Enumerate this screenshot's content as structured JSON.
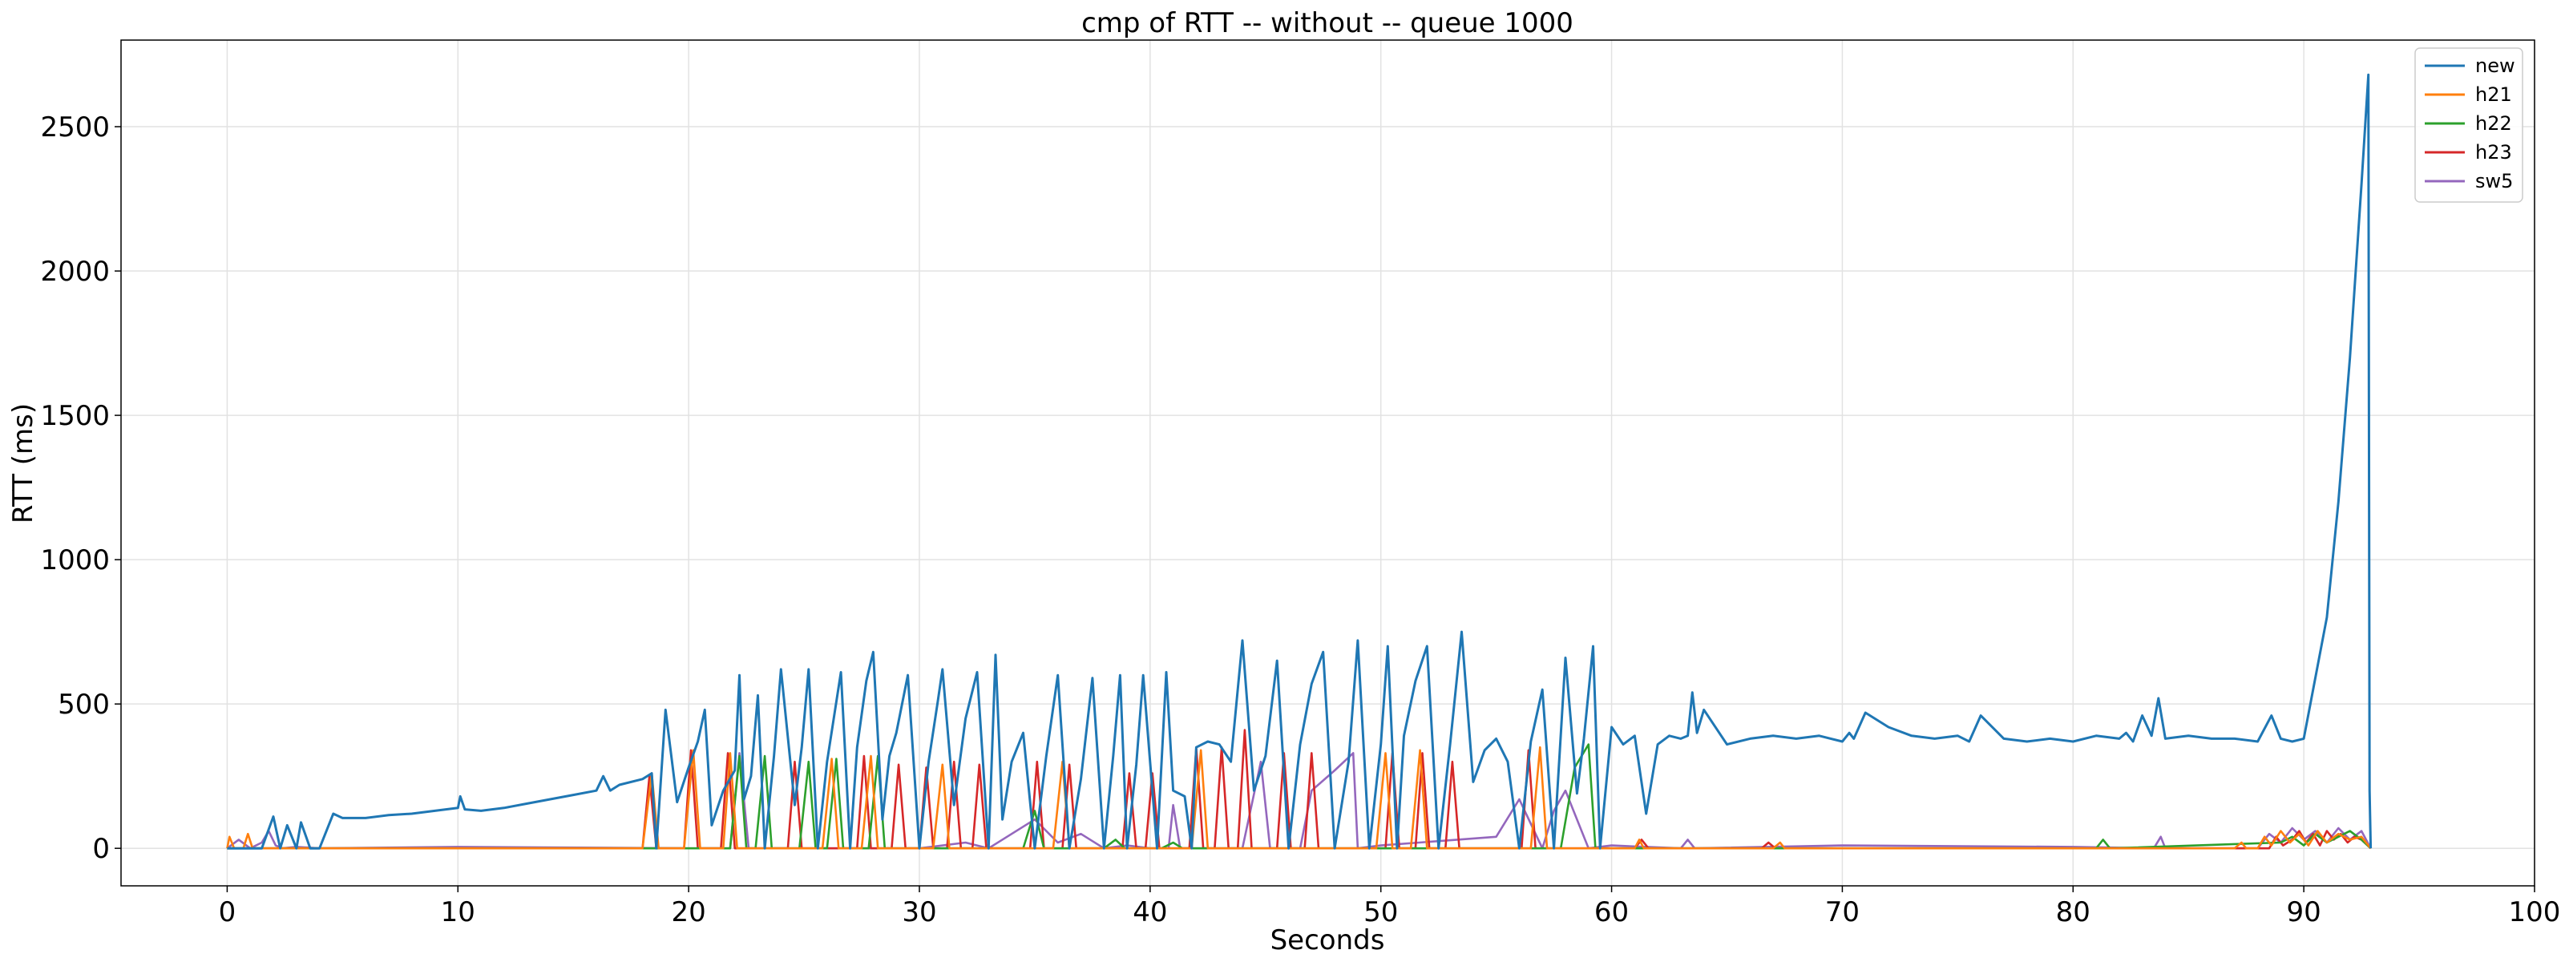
{
  "chart_data": {
    "type": "line",
    "title": "cmp of RTT -- without -- queue 1000",
    "xlabel": "Seconds",
    "ylabel": "RTT (ms)",
    "xlim": [
      -4.6,
      100
    ],
    "ylim": [
      -130,
      2800
    ],
    "xticks": [
      0,
      10,
      20,
      30,
      40,
      50,
      60,
      70,
      80,
      90,
      100
    ],
    "yticks": [
      0,
      500,
      1000,
      1500,
      2000,
      2500
    ],
    "grid": true,
    "legend_position": "top-right",
    "series": [
      {
        "name": "new",
        "color": "#1f77b4",
        "x": [
          0,
          1.5,
          2.0,
          2.3,
          2.6,
          3.0,
          3.2,
          3.6,
          4.0,
          4.6,
          5.0,
          6.0,
          7.0,
          8.0,
          9.0,
          10.0,
          10.1,
          10.3,
          11.0,
          12.0,
          13.0,
          14.0,
          15.0,
          16.0,
          16.3,
          16.6,
          17.0,
          18.0,
          18.4,
          18.6,
          19.0,
          19.5,
          20.0,
          20.4,
          20.7,
          21.0,
          21.5,
          22.0,
          22.2,
          22.4,
          22.7,
          23.0,
          23.3,
          23.7,
          24.0,
          24.6,
          24.9,
          25.2,
          25.6,
          26.0,
          26.6,
          27.0,
          27.3,
          27.7,
          28.0,
          28.4,
          28.7,
          29.0,
          29.5,
          30.0,
          30.4,
          30.8,
          31.0,
          31.5,
          32.0,
          32.5,
          33.0,
          33.3,
          33.6,
          34.0,
          34.5,
          35.0,
          35.5,
          36.0,
          36.5,
          37.0,
          37.5,
          38.0,
          38.4,
          38.7,
          39.0,
          39.4,
          39.7,
          40.0,
          40.3,
          40.7,
          41.0,
          41.5,
          41.8,
          42.0,
          42.5,
          43.0,
          43.5,
          44.0,
          44.5,
          45.0,
          45.5,
          46.0,
          46.5,
          47.0,
          47.5,
          48.0,
          48.6,
          49.0,
          49.5,
          50.0,
          50.3,
          50.7,
          51.0,
          51.5,
          52.0,
          52.5,
          53.0,
          53.5,
          54.0,
          54.5,
          55.0,
          55.5,
          56.0,
          56.5,
          57.0,
          57.5,
          58.0,
          58.5,
          58.8,
          59.2,
          59.5,
          60.0,
          60.5,
          61.0,
          61.5,
          62.0,
          62.5,
          63.0,
          63.3,
          63.5,
          63.7,
          64.0,
          65.0,
          66.0,
          67.0,
          68.0,
          69.0,
          70.0,
          70.3,
          70.5,
          71.0,
          72.0,
          73.0,
          74.0,
          75.0,
          75.5,
          76.0,
          77.0,
          78.0,
          79.0,
          80.0,
          81.0,
          82.0,
          82.3,
          82.6,
          83.0,
          83.4,
          83.7,
          84.0,
          85.0,
          86.0,
          87.0,
          88.0,
          88.6,
          89.0,
          89.5,
          90.0,
          91.0,
          91.5,
          92.0,
          92.5,
          92.8,
          92.85,
          92.9
        ],
        "y": [
          0,
          0,
          110,
          0,
          80,
          0,
          90,
          0,
          0,
          120,
          105,
          105,
          115,
          120,
          130,
          140,
          180,
          135,
          130,
          140,
          155,
          170,
          185,
          200,
          250,
          200,
          220,
          240,
          260,
          0,
          480,
          160,
          280,
          370,
          480,
          80,
          200,
          270,
          600,
          170,
          250,
          530,
          0,
          320,
          620,
          150,
          350,
          620,
          0,
          300,
          610,
          0,
          350,
          580,
          680,
          100,
          320,
          400,
          600,
          0,
          300,
          510,
          620,
          150,
          450,
          610,
          0,
          670,
          100,
          300,
          400,
          0,
          320,
          600,
          0,
          240,
          590,
          0,
          320,
          600,
          0,
          290,
          600,
          300,
          0,
          610,
          200,
          180,
          0,
          350,
          370,
          360,
          300,
          720,
          200,
          320,
          650,
          0,
          360,
          570,
          680,
          0,
          300,
          720,
          0,
          360,
          700,
          0,
          390,
          580,
          700,
          0,
          360,
          750,
          230,
          340,
          380,
          300,
          0,
          370,
          550,
          0,
          660,
          190,
          380,
          700,
          0,
          420,
          360,
          390,
          120,
          360,
          390,
          380,
          390,
          540,
          400,
          480,
          360,
          380,
          390,
          380,
          390,
          370,
          400,
          380,
          470,
          420,
          390,
          380,
          390,
          370,
          460,
          380,
          370,
          380,
          370,
          390,
          380,
          400,
          370,
          460,
          390,
          520,
          380,
          390,
          380,
          380,
          370,
          460,
          380,
          370,
          380,
          800,
          1200,
          1700,
          2300,
          2680,
          200,
          0
        ]
      },
      {
        "name": "h21",
        "color": "#ff7f0e",
        "x": [
          0,
          0.1,
          0.3,
          0.7,
          0.9,
          1.1,
          1.3,
          18.0,
          18.4,
          18.7,
          19.8,
          20.2,
          20.5,
          21.5,
          21.8,
          22.1,
          25.8,
          26.2,
          26.5,
          27.5,
          27.9,
          28.2,
          30.6,
          31.0,
          31.3,
          35.8,
          36.2,
          36.5,
          41.8,
          42.2,
          42.5,
          49.8,
          50.2,
          50.5,
          51.3,
          51.7,
          52.0,
          56.5,
          56.9,
          57.2,
          61.0,
          61.2,
          61.4,
          67.0,
          67.3,
          67.5,
          87.0,
          87.3,
          87.5,
          88.0,
          88.3,
          88.6,
          89.0,
          89.4,
          89.8,
          90.2,
          90.6,
          91.0,
          91.5,
          92.0,
          92.5,
          92.9
        ],
        "y": [
          0,
          40,
          0,
          0,
          50,
          0,
          0,
          0,
          260,
          0,
          0,
          340,
          0,
          0,
          330,
          0,
          0,
          310,
          0,
          0,
          320,
          0,
          0,
          290,
          0,
          0,
          300,
          0,
          0,
          340,
          0,
          0,
          330,
          0,
          0,
          340,
          0,
          0,
          350,
          0,
          0,
          30,
          0,
          0,
          20,
          0,
          0,
          20,
          0,
          0,
          40,
          10,
          60,
          20,
          50,
          10,
          60,
          20,
          50,
          30,
          40,
          0
        ]
      },
      {
        "name": "h22",
        "color": "#2ca02c",
        "x": [
          0,
          21.8,
          22.2,
          22.5,
          22.9,
          23.3,
          23.6,
          24.8,
          25.2,
          25.5,
          26.0,
          26.4,
          26.7,
          27.8,
          28.2,
          28.5,
          34.5,
          35.0,
          35.4,
          38.0,
          38.5,
          38.9,
          40.5,
          41.0,
          41.4,
          57.8,
          58.4,
          59.0,
          59.3,
          81.0,
          81.3,
          81.6,
          89.0,
          89.5,
          90.0,
          90.5,
          91.0,
          91.5,
          92.0,
          92.5,
          92.9
        ],
        "y": [
          0,
          0,
          320,
          0,
          0,
          320,
          0,
          0,
          300,
          0,
          0,
          310,
          0,
          0,
          320,
          0,
          0,
          130,
          0,
          0,
          30,
          0,
          0,
          20,
          0,
          0,
          280,
          360,
          0,
          0,
          30,
          0,
          20,
          40,
          10,
          50,
          20,
          40,
          60,
          30,
          0
        ]
      },
      {
        "name": "h23",
        "color": "#d62728",
        "x": [
          0,
          18.0,
          18.3,
          18.6,
          19.8,
          20.1,
          20.4,
          21.4,
          21.7,
          22.0,
          24.3,
          24.6,
          24.9,
          27.3,
          27.6,
          27.9,
          28.8,
          29.1,
          29.4,
          30.0,
          30.3,
          30.6,
          31.2,
          31.5,
          31.8,
          32.3,
          32.6,
          32.9,
          34.8,
          35.1,
          35.4,
          36.2,
          36.5,
          36.8,
          38.8,
          39.1,
          39.4,
          39.8,
          40.1,
          40.4,
          41.7,
          42.0,
          42.3,
          42.8,
          43.1,
          43.4,
          43.8,
          44.1,
          44.4,
          45.5,
          45.8,
          46.1,
          46.7,
          47.0,
          47.3,
          50.2,
          50.5,
          50.8,
          51.5,
          51.8,
          52.1,
          52.8,
          53.1,
          53.4,
          56.1,
          56.4,
          56.7,
          61.0,
          61.3,
          61.6,
          66.5,
          66.8,
          67.1,
          88.5,
          88.8,
          89.1,
          89.5,
          89.8,
          90.1,
          90.4,
          90.7,
          91.0,
          91.3,
          91.6,
          91.9,
          92.2,
          92.5,
          92.9
        ],
        "y": [
          0,
          0,
          250,
          0,
          0,
          340,
          0,
          0,
          330,
          0,
          0,
          300,
          0,
          0,
          320,
          0,
          0,
          290,
          0,
          0,
          280,
          0,
          0,
          300,
          0,
          0,
          290,
          0,
          0,
          300,
          0,
          0,
          290,
          0,
          0,
          260,
          0,
          0,
          260,
          0,
          0,
          350,
          0,
          0,
          350,
          0,
          0,
          410,
          0,
          0,
          330,
          0,
          0,
          330,
          0,
          0,
          330,
          0,
          0,
          330,
          0,
          0,
          300,
          0,
          0,
          340,
          0,
          0,
          30,
          0,
          0,
          20,
          0,
          0,
          40,
          10,
          30,
          60,
          20,
          50,
          10,
          60,
          30,
          50,
          20,
          40,
          30,
          0
        ]
      },
      {
        "name": "sw5",
        "color": "#9467bd",
        "x": [
          0,
          0.5,
          1.0,
          1.5,
          1.8,
          2.1,
          2.4,
          3.0,
          4.0,
          10.0,
          20.0,
          21.8,
          22.2,
          22.6,
          30.0,
          32.0,
          33.0,
          35.0,
          36.0,
          37.0,
          38.0,
          39.0,
          40.0,
          40.8,
          41.0,
          41.3,
          44.0,
          44.8,
          45.2,
          46.5,
          47.0,
          48.0,
          48.8,
          49.0,
          50.0,
          55.0,
          56.0,
          57.0,
          57.5,
          58.0,
          59.0,
          60.0,
          63.0,
          63.3,
          63.6,
          70.0,
          80.0,
          83.5,
          83.8,
          84.0,
          88.0,
          88.5,
          89.0,
          89.5,
          90.0,
          90.5,
          91.0,
          91.5,
          92.0,
          92.5,
          92.9
        ],
        "y": [
          0,
          30,
          0,
          20,
          60,
          10,
          0,
          5,
          0,
          5,
          0,
          0,
          330,
          0,
          0,
          20,
          0,
          100,
          20,
          50,
          0,
          10,
          0,
          0,
          150,
          0,
          0,
          300,
          0,
          0,
          200,
          270,
          330,
          0,
          10,
          40,
          170,
          0,
          130,
          200,
          0,
          10,
          0,
          30,
          0,
          10,
          5,
          0,
          40,
          0,
          0,
          50,
          20,
          70,
          30,
          60,
          20,
          70,
          30,
          60,
          0
        ]
      }
    ]
  }
}
